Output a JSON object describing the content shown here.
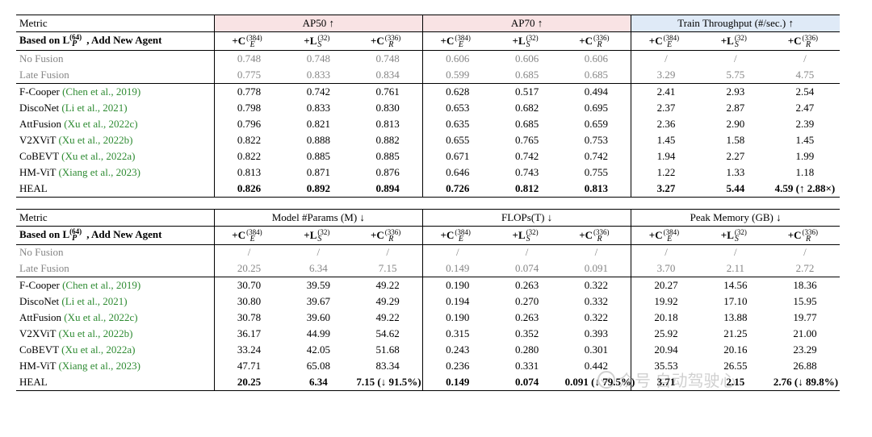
{
  "arrows": {
    "up": "↑",
    "down": "↓"
  },
  "colsym": [
    {
      "pre": "+C",
      "sup": "(384)",
      "sub": "E"
    },
    {
      "pre": "+L",
      "sup": "(32)",
      "sub": "S"
    },
    {
      "pre": "+C",
      "sup": "(336)",
      "sub": "R"
    }
  ],
  "rowhead": {
    "pre": "Based on L",
    "sup": "(64)",
    "sub": "P",
    "after": ", Add New Agent"
  },
  "tables": [
    {
      "metrics": [
        {
          "label": "AP50 ↑",
          "bg": "pink"
        },
        {
          "label": "AP70 ↑",
          "bg": "pink"
        },
        {
          "label": "Train Throughput (#/sec.) ↑",
          "bg": "blue"
        }
      ],
      "baselines": [
        {
          "name": "No Fusion",
          "cite": "",
          "vals": [
            "0.748",
            "0.748",
            "0.748",
            "0.606",
            "0.606",
            "0.606",
            "/",
            "/",
            "/"
          ],
          "gray": true
        },
        {
          "name": "Late Fusion",
          "cite": "",
          "vals": [
            "0.775",
            "0.833",
            "0.834",
            "0.599",
            "0.685",
            "0.685",
            "3.29",
            "5.75",
            "4.75"
          ],
          "gray": true
        }
      ],
      "methods": [
        {
          "name": "F-Cooper ",
          "cite": "(Chen et al., 2019)",
          "vals": [
            "0.778",
            "0.742",
            "0.761",
            "0.628",
            "0.517",
            "0.494",
            "2.41",
            "2.93",
            "2.54"
          ]
        },
        {
          "name": "DiscoNet ",
          "cite": "(Li et al., 2021)",
          "vals": [
            "0.798",
            "0.833",
            "0.830",
            "0.653",
            "0.682",
            "0.695",
            "2.37",
            "2.87",
            "2.47"
          ]
        },
        {
          "name": "AttFusion ",
          "cite": "(Xu et al., 2022c)",
          "vals": [
            "0.796",
            "0.821",
            "0.813",
            "0.635",
            "0.685",
            "0.659",
            "2.36",
            "2.90",
            "2.39"
          ]
        },
        {
          "name": "V2XViT ",
          "cite": "(Xu et al., 2022b)",
          "vals": [
            "0.822",
            "0.888",
            "0.882",
            "0.655",
            "0.765",
            "0.753",
            "1.45",
            "1.58",
            "1.45"
          ]
        },
        {
          "name": "CoBEVT ",
          "cite": "(Xu et al., 2022a)",
          "vals": [
            "0.822",
            "0.885",
            "0.885",
            "0.671",
            "0.742",
            "0.742",
            "1.94",
            "2.27",
            "1.99"
          ]
        },
        {
          "name": "HM-ViT ",
          "cite": "(Xiang et al., 2023)",
          "vals": [
            "0.813",
            "0.871",
            "0.876",
            "0.646",
            "0.743",
            "0.755",
            "1.22",
            "1.33",
            "1.18"
          ]
        },
        {
          "name": "HEAL",
          "cite": "",
          "bold": true,
          "vals": [
            "0.826",
            "0.892",
            "0.894",
            "0.726",
            "0.812",
            "0.813",
            "3.27",
            "5.44",
            "4.59 (↑ 2.88×)"
          ]
        }
      ]
    },
    {
      "metrics": [
        {
          "label": "Model #Params (M) ↓",
          "bg": ""
        },
        {
          "label": "FLOPs(T) ↓",
          "bg": ""
        },
        {
          "label": "Peak Memory (GB) ↓",
          "bg": ""
        }
      ],
      "baselines": [
        {
          "name": "No Fusion",
          "cite": "",
          "vals": [
            "/",
            "/",
            "/",
            "/",
            "/",
            "/",
            "/",
            "/",
            "/"
          ],
          "gray": true
        },
        {
          "name": "Late Fusion",
          "cite": "",
          "vals": [
            "20.25",
            "6.34",
            "7.15",
            "0.149",
            "0.074",
            "0.091",
            "3.70",
            "2.11",
            "2.72"
          ],
          "gray": true
        }
      ],
      "methods": [
        {
          "name": "F-Cooper ",
          "cite": "(Chen et al., 2019)",
          "vals": [
            "30.70",
            "39.59",
            "49.22",
            "0.190",
            "0.263",
            "0.322",
            "20.27",
            "14.56",
            "18.36"
          ]
        },
        {
          "name": "DiscoNet ",
          "cite": "(Li et al., 2021)",
          "vals": [
            "30.80",
            "39.67",
            "49.29",
            "0.194",
            "0.270",
            "0.332",
            "19.92",
            "17.10",
            "15.95"
          ]
        },
        {
          "name": "AttFusion ",
          "cite": "(Xu et al., 2022c)",
          "vals": [
            "30.78",
            "39.60",
            "49.22",
            "0.190",
            "0.263",
            "0.322",
            "20.18",
            "13.88",
            "19.77"
          ]
        },
        {
          "name": "V2XViT ",
          "cite": "(Xu et al., 2022b)",
          "vals": [
            "36.17",
            "44.99",
            "54.62",
            "0.315",
            "0.352",
            "0.393",
            "25.92",
            "21.25",
            "21.00"
          ]
        },
        {
          "name": "CoBEVT ",
          "cite": "(Xu et al., 2022a)",
          "vals": [
            "33.24",
            "42.05",
            "51.68",
            "0.243",
            "0.280",
            "0.301",
            "20.94",
            "20.16",
            "23.29"
          ]
        },
        {
          "name": "HM-ViT ",
          "cite": "(Xiang et al., 2023)",
          "vals": [
            "47.71",
            "65.08",
            "83.34",
            "0.236",
            "0.331",
            "0.442",
            "35.53",
            "26.55",
            "26.88"
          ]
        },
        {
          "name": "HEAL",
          "cite": "",
          "bold": true,
          "vals": [
            "20.25",
            "6.34",
            "7.15 (↓ 91.5%)",
            "0.149",
            "0.074",
            "0.091 (↓ 79.5%)",
            "3.71",
            "2.15",
            "2.76 (↓ 89.8%)"
          ]
        }
      ]
    }
  ],
  "metric_word": "Metric",
  "watermark": "众号  自动驾驶心"
}
